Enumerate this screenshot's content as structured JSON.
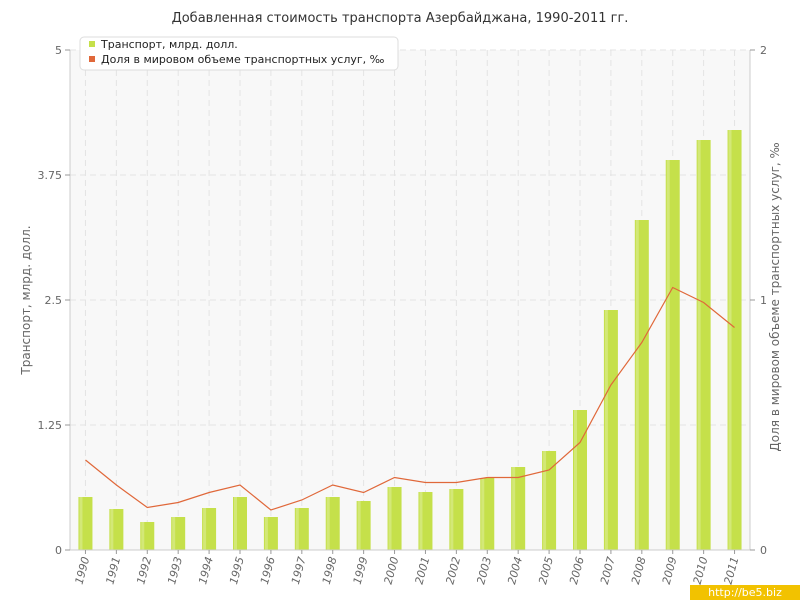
{
  "chart_data": {
    "type": "bar",
    "title": "Добавленная стоимость транспорта Азербайджана, 1990-2011 гг.",
    "categories": [
      "1990",
      "1991",
      "1992",
      "1993",
      "1994",
      "1995",
      "1996",
      "1997",
      "1998",
      "1999",
      "2000",
      "2001",
      "2002",
      "2003",
      "2004",
      "2005",
      "2006",
      "2007",
      "2008",
      "2009",
      "2010",
      "2011"
    ],
    "series": [
      {
        "name": "Транспорт, млрд. долл.",
        "type": "bar",
        "axis": "left",
        "color": "#c5e04a",
        "values": [
          0.53,
          0.41,
          0.28,
          0.33,
          0.42,
          0.53,
          0.33,
          0.42,
          0.53,
          0.49,
          0.63,
          0.58,
          0.61,
          0.72,
          0.83,
          0.99,
          1.4,
          2.4,
          3.3,
          3.9,
          4.1,
          4.2
        ]
      },
      {
        "name": "Доля в мировом объеме транспортных услуг, ‰",
        "type": "line",
        "axis": "right",
        "color": "#e0683a",
        "values": [
          0.36,
          0.26,
          0.17,
          0.19,
          0.23,
          0.26,
          0.16,
          0.2,
          0.26,
          0.23,
          0.29,
          0.27,
          0.27,
          0.29,
          0.29,
          0.32,
          0.43,
          0.66,
          0.83,
          1.05,
          0.99,
          0.89
        ]
      }
    ],
    "ylabel": "Транспорт, млрд. долл.",
    "y2label": "Доля в мировом объеме транспортных услуг, ‰",
    "ylim": [
      0,
      5
    ],
    "y2lim": [
      0,
      2
    ],
    "yticks": [
      "0",
      "1.25",
      "2.5",
      "3.75",
      "5"
    ],
    "y2ticks": [
      "0",
      "1",
      "2"
    ],
    "grid": true,
    "legend_position": "top-left"
  },
  "watermark": "http://be5.biz"
}
